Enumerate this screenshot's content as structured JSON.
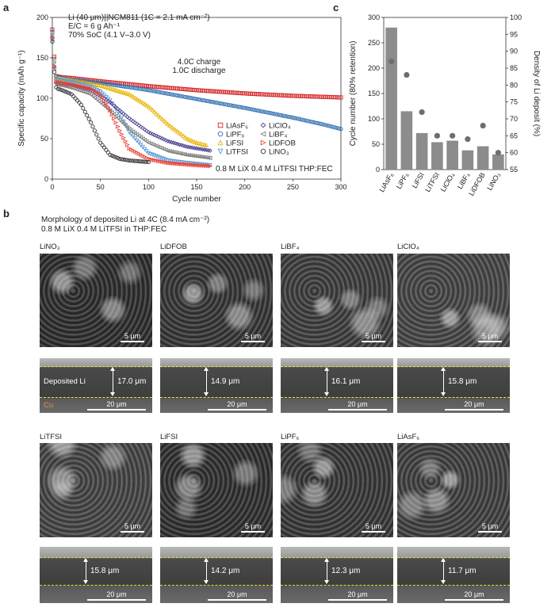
{
  "panel_labels": {
    "a": "a",
    "b": "b",
    "c": "c"
  },
  "panel_a": {
    "header_lines": [
      "Li (40 μm)||NCM811 (1C = 2.1 mA cm⁻²)",
      "E/C = 6 g Ah⁻¹",
      "70% SoC (4.1 V–3.0 V)"
    ],
    "protocol_lines": [
      "4.0C charge",
      "1.0C discharge"
    ],
    "electrolyte_note": "0.8 M LiX 0.4 M LiTFSI THP:FEC"
  },
  "panel_b": {
    "title_lines": [
      "Morphology of deposited Li at 4C (8.4 mA cm⁻²)",
      "0.8 M LiX 0.4 M LiTFSI in THP:FEC"
    ],
    "top_scale": "5 μm",
    "cross_scale": "20 μm",
    "deposited_label": "Deposited Li",
    "cu_label": "Cu",
    "row1": [
      {
        "name": "LiNO₃",
        "thickness": "17.0 μm"
      },
      {
        "name": "LiDFOB",
        "thickness": "14.9 μm"
      },
      {
        "name": "LiBF₄",
        "thickness": "16.1 μm"
      },
      {
        "name": "LiClO₄",
        "thickness": "15.8 μm"
      }
    ],
    "row2": [
      {
        "name": "LiTFSI",
        "thickness": "15.8 μm"
      },
      {
        "name": "LiFSI",
        "thickness": "14.2 μm"
      },
      {
        "name": "LiPF₆",
        "thickness": "12.3 μm"
      },
      {
        "name": "LiAsF₆",
        "thickness": "11.7 μm"
      }
    ]
  },
  "colors": {
    "LiAsF6": "#d62728",
    "LiPF6": "#2f6fb0",
    "LiFSI": "#e8b400",
    "LiTFSI": "#5b9bd5",
    "LiClO4": "#4b3f8f",
    "LiBF4": "#7f7f7f",
    "LiDFOB": "#e8443a",
    "LiNO3": "#333333",
    "bar": "#8c8c8c",
    "dot": "#6e6e6e"
  },
  "chart_data": [
    {
      "type": "line",
      "xlabel": "Cycle number",
      "ylabel": "Specific capacity (mAh g⁻¹)",
      "xlim": [
        0,
        300
      ],
      "ylim": [
        0,
        200
      ],
      "xticks": [
        0,
        50,
        100,
        150,
        200,
        250,
        300
      ],
      "yticks": [
        0,
        50,
        100,
        150,
        200
      ],
      "legend_position": "bottom-right",
      "series": [
        {
          "name": "LiAsF₆",
          "marker": "square",
          "x": [
            0,
            1,
            3,
            5,
            10,
            20,
            50,
            100,
            150,
            200,
            250,
            300
          ],
          "y": [
            185,
            175,
            128,
            127,
            126,
            125,
            121,
            115,
            110,
            106,
            103,
            101
          ]
        },
        {
          "name": "LiPF₆",
          "marker": "circle",
          "x": [
            0,
            1,
            3,
            5,
            10,
            20,
            50,
            100,
            150,
            200,
            250,
            280,
            300
          ],
          "y": [
            182,
            170,
            128,
            126,
            125,
            123,
            119,
            110,
            99,
            88,
            76,
            68,
            62
          ]
        },
        {
          "name": "LiFSI",
          "marker": "triangle-up",
          "x": [
            0,
            1,
            3,
            5,
            10,
            20,
            50,
            80,
            100,
            120,
            140,
            150,
            160
          ],
          "y": [
            180,
            165,
            127,
            125,
            124,
            122,
            116,
            105,
            90,
            68,
            50,
            45,
            42
          ]
        },
        {
          "name": "LiTFSI",
          "marker": "triangle-down",
          "x": [
            0,
            1,
            3,
            5,
            10,
            20,
            40,
            50,
            60,
            70,
            80,
            100,
            120,
            140,
            165
          ],
          "y": [
            178,
            160,
            126,
            123,
            122,
            120,
            114,
            108,
            97,
            80,
            58,
            32,
            23,
            20,
            17
          ]
        },
        {
          "name": "LiClO₄",
          "marker": "diamond",
          "x": [
            0,
            1,
            3,
            5,
            10,
            20,
            40,
            60,
            80,
            100,
            120,
            140,
            165
          ],
          "y": [
            175,
            158,
            120,
            119,
            118,
            116,
            110,
            95,
            75,
            58,
            47,
            40,
            35
          ]
        },
        {
          "name": "LiBF₄",
          "marker": "triangle-left",
          "x": [
            0,
            1,
            3,
            5,
            10,
            20,
            40,
            60,
            80,
            100,
            120,
            140,
            165
          ],
          "y": [
            173,
            155,
            119,
            117,
            116,
            113,
            105,
            85,
            62,
            45,
            35,
            30,
            26
          ]
        },
        {
          "name": "LiDFOB",
          "marker": "triangle-right",
          "x": [
            0,
            1,
            3,
            5,
            10,
            20,
            40,
            50,
            60,
            70,
            80,
            100,
            120,
            140,
            165
          ],
          "y": [
            176,
            158,
            122,
            120,
            119,
            117,
            112,
            105,
            85,
            60,
            38,
            25,
            20,
            18,
            16
          ]
        },
        {
          "name": "LiNO₃",
          "marker": "hexagon",
          "x": [
            0,
            1,
            3,
            5,
            10,
            20,
            30,
            40,
            50,
            60,
            70,
            80,
            90,
            100
          ],
          "y": [
            170,
            150,
            115,
            112,
            110,
            105,
            92,
            70,
            45,
            30,
            25,
            23,
            22,
            21
          ]
        }
      ]
    },
    {
      "type": "bar",
      "categories": [
        "LiAsF₆",
        "LiPF₆",
        "LiFSI",
        "LiTFSI",
        "LiClO₄",
        "LiBF₄",
        "LiDFOB",
        "LiNO₃"
      ],
      "series": [
        {
          "name": "Cycle number (80% retention)",
          "values": [
            280,
            115,
            72,
            54,
            57,
            38,
            46,
            30
          ]
        }
      ],
      "secondary_series": [
        {
          "name": "Density of Li deposit (%)",
          "values": [
            87,
            83,
            72,
            65,
            65,
            64,
            68,
            60
          ]
        }
      ],
      "ylabel": "Cycle number (80% retention)",
      "y2label": "Density of Li deposit (%)",
      "ylim": [
        0,
        300
      ],
      "y2lim": [
        55,
        100
      ],
      "yticks": [
        0,
        50,
        100,
        150,
        200,
        250,
        300
      ],
      "y2ticks": [
        55,
        60,
        65,
        70,
        75,
        80,
        85,
        90,
        95,
        100
      ]
    }
  ]
}
